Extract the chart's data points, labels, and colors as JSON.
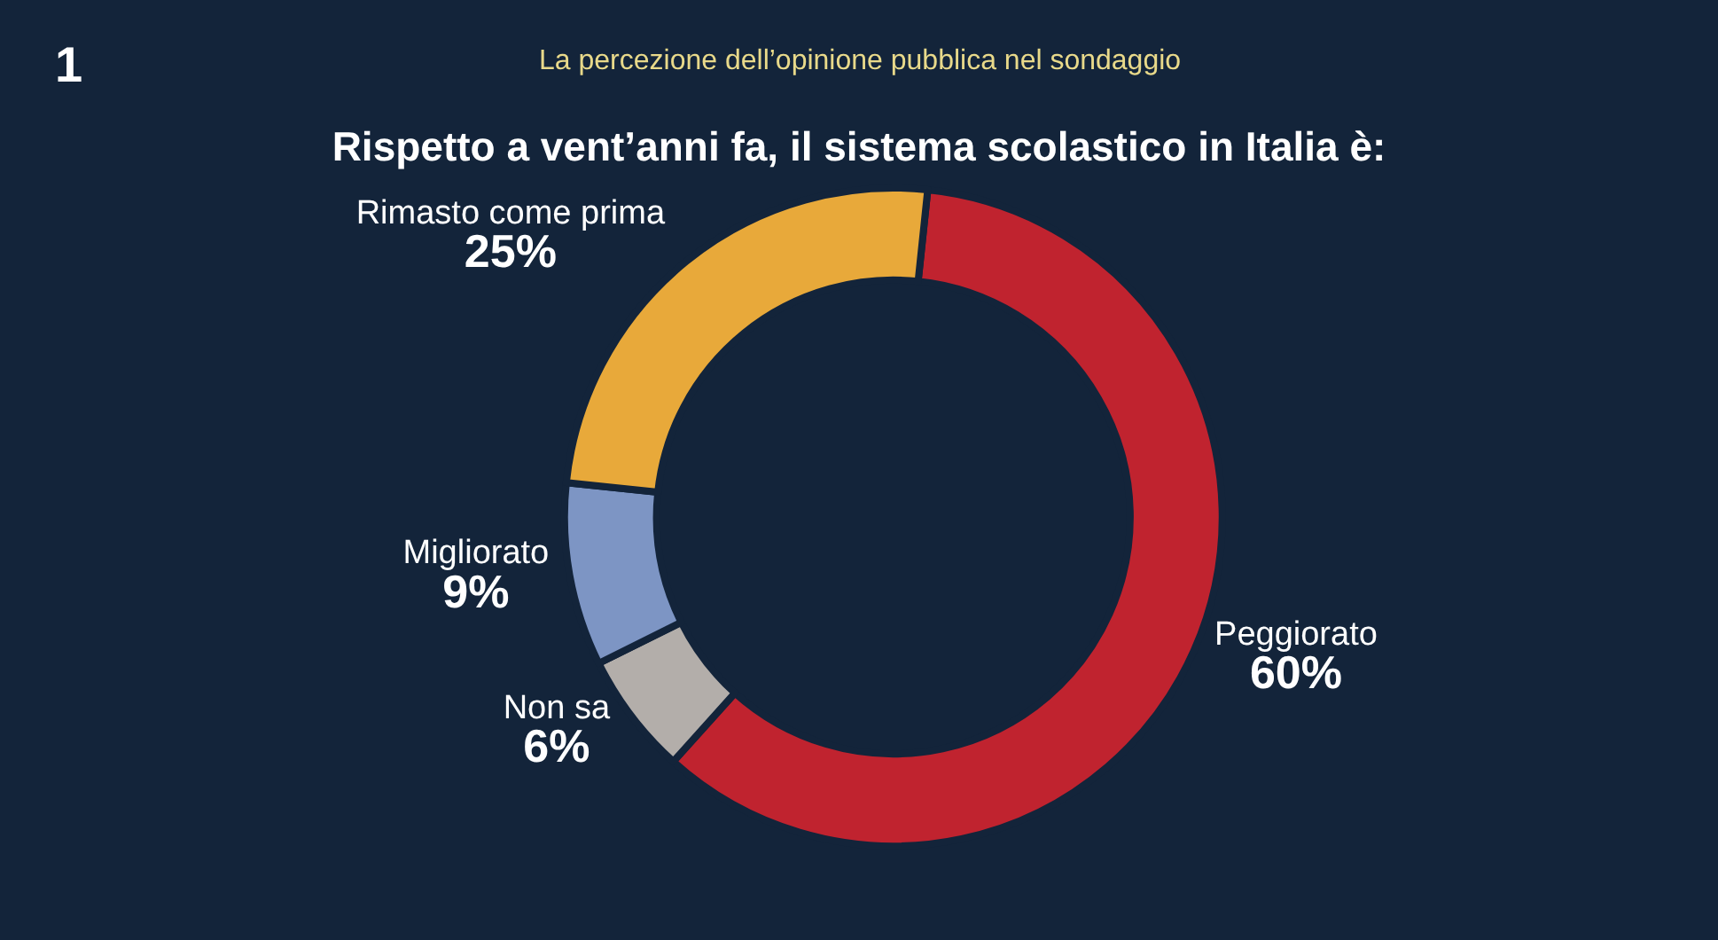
{
  "chart_data": {
    "type": "donut",
    "subtitle": "La percezione dell’opinione pubblica nel sondaggio",
    "title": "Rispetto a vent’anni fa, il sistema scolastico in Italia è:",
    "categories": [
      "Peggiorato",
      "Non sa",
      "Migliorato",
      "Rimasto come prima"
    ],
    "values": [
      60,
      6,
      9,
      25
    ],
    "colors": [
      "#c0232f",
      "#b3aeaa",
      "#7d95c4",
      "#e8a93a"
    ],
    "value_labels": [
      "60%",
      "6%",
      "9%",
      "25%"
    ],
    "annotations": [
      "1"
    ],
    "legend": false
  }
}
